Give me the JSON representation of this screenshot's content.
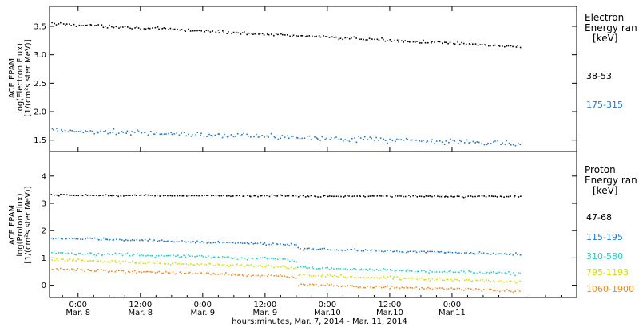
{
  "chart_data": [
    {
      "type": "scatter",
      "panel": "electron",
      "ylabel_lines": [
        "ACE EPAM",
        "log(Electron Flux)",
        "[1/(cm²s ster MeV)]"
      ],
      "legend_title_lines": [
        "Electron",
        "Energy ran",
        "[keV]"
      ],
      "ylim": [
        1.3,
        3.85
      ],
      "yticks": [
        1.5,
        2.0,
        2.5,
        3.0,
        3.5
      ],
      "ytick_labels": [
        "1.5",
        "2.0",
        "2.5",
        "3.0",
        "3.5"
      ],
      "series": [
        {
          "name": "38-53",
          "color": "#000000",
          "start": 3.56,
          "end": 3.15,
          "noise": 0.025
        },
        {
          "name": "175-315",
          "color": "#1e78d0",
          "start": 1.68,
          "end": 1.45,
          "noise": 0.045
        }
      ]
    },
    {
      "type": "scatter",
      "panel": "proton",
      "ylabel_lines": [
        "ACE EPAM",
        "log(Proton Flux)",
        "[1/(cm²s ster MeV)]"
      ],
      "legend_title_lines": [
        "Proton",
        "Energy ran",
        "[keV]"
      ],
      "ylim": [
        -0.45,
        4.9
      ],
      "yticks": [
        0,
        1,
        2,
        3,
        4
      ],
      "ytick_labels": [
        "0",
        "1",
        "2",
        "3",
        "4"
      ],
      "series": [
        {
          "name": "47-68",
          "color": "#000000",
          "start": 3.32,
          "end": 3.27,
          "step": 0.0,
          "noise": 0.03
        },
        {
          "name": "115-195",
          "color": "#1e78d0",
          "start": 1.75,
          "end": 1.3,
          "step": -0.15,
          "noise": 0.04
        },
        {
          "name": "310-580",
          "color": "#22d0c8",
          "start": 1.22,
          "end": 0.72,
          "step": -0.28,
          "noise": 0.05
        },
        {
          "name": "795-1193",
          "color": "#d4e000",
          "start": 0.95,
          "end": 0.45,
          "step": -0.3,
          "noise": 0.05
        },
        {
          "name": "1060-1900",
          "color": "#f08a1c",
          "start": 0.6,
          "end": 0.12,
          "step": -0.3,
          "noise": 0.05
        }
      ]
    }
  ],
  "x_axis": {
    "xlabel": "hours:minutes,  Mar.  7, 2014 - Mar. 11, 2014",
    "range_hours": [
      18.5,
      120
    ],
    "data_end_hours": 109,
    "ticks": [
      {
        "hours": 24,
        "time": "0:00",
        "date": "Mar. 8"
      },
      {
        "hours": 36,
        "time": "12:00",
        "date": "Mar. 8"
      },
      {
        "hours": 48,
        "time": "0:00",
        "date": "Mar. 9"
      },
      {
        "hours": 60,
        "time": "12:00",
        "date": "Mar. 9"
      },
      {
        "hours": 72,
        "time": "0:00",
        "date": "Mar.10"
      },
      {
        "hours": 84,
        "time": "12:00",
        "date": "Mar.10"
      },
      {
        "hours": 96,
        "time": "0:00",
        "date": "Mar.11"
      }
    ]
  }
}
